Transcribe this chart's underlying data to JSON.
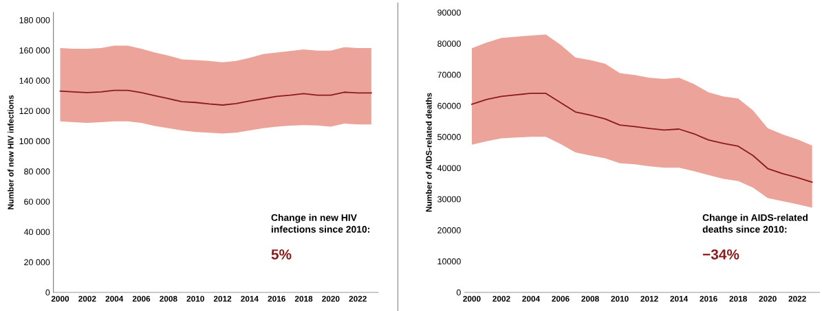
{
  "chart_data": [
    {
      "type": "line",
      "ylabel": "Number of new HIV infections",
      "categories": [
        "2000",
        null,
        "2002",
        null,
        "2004",
        null,
        "2006",
        null,
        "2008",
        null,
        "2010",
        null,
        "2012",
        null,
        "2014",
        null,
        "2016",
        null,
        "2018",
        null,
        "2020",
        null,
        "2022",
        null
      ],
      "series": [
        {
          "color": "#8b1a1a",
          "values": [
            133000,
            132500,
            132000,
            132500,
            133500,
            133500,
            132000,
            130000,
            128000,
            126000,
            125500,
            124500,
            123800,
            124800,
            126500,
            128000,
            129500,
            130300,
            131300,
            130300,
            130300,
            132300,
            131800,
            131800
          ],
          "upper": [
            161500,
            161000,
            161000,
            161500,
            163000,
            163000,
            161000,
            158500,
            156500,
            154000,
            153500,
            153000,
            152000,
            153000,
            155000,
            157500,
            158500,
            159500,
            160500,
            159800,
            159800,
            162000,
            161500,
            161500
          ],
          "lower": [
            113000,
            112500,
            112000,
            112500,
            113000,
            113000,
            112000,
            110000,
            108500,
            107000,
            106000,
            105500,
            105000,
            105500,
            107000,
            108500,
            109500,
            110200,
            110500,
            110300,
            109500,
            111500,
            111000,
            111000
          ]
        }
      ],
      "ylim": [
        0,
        185000
      ],
      "yticks": [
        0,
        {
          "value": 20000,
          "label": "20 000"
        },
        {
          "value": 40000,
          "label": "40 000"
        },
        {
          "value": 60000,
          "label": "60 000"
        },
        {
          "value": 80000,
          "label": "80 000"
        },
        {
          "value": 100000,
          "label": "100 000"
        },
        {
          "value": 120000,
          "label": "120 000"
        },
        {
          "value": 140000,
          "label": "140 000"
        },
        {
          "value": 160000,
          "label": "160 000"
        },
        {
          "value": 180000,
          "label": "180 000"
        }
      ],
      "grid": false,
      "legend": false,
      "annotations": [
        "Change in new HIV\ninfections since 2010:",
        "5%"
      ]
    },
    {
      "type": "line",
      "ylabel": "Number of AIDS-related deaths",
      "categories": [
        "2000",
        null,
        "2002",
        null,
        "2004",
        null,
        "2006",
        null,
        "2008",
        null,
        "2010",
        null,
        "2012",
        null,
        "2014",
        null,
        "2016",
        null,
        "2018",
        null,
        "2020",
        null,
        "2022",
        null
      ],
      "series": [
        {
          "color": "#8b1a1a",
          "values": [
            60500,
            62000,
            63000,
            63500,
            64000,
            64000,
            61000,
            58000,
            57000,
            55800,
            53800,
            53300,
            52700,
            52200,
            52500,
            51000,
            49000,
            47900,
            47000,
            44000,
            39800,
            38200,
            36900,
            35400
          ],
          "upper": [
            78500,
            80300,
            81800,
            82200,
            82600,
            82900,
            79600,
            75500,
            74700,
            73500,
            70500,
            69900,
            69000,
            68600,
            69000,
            67000,
            64300,
            63000,
            62300,
            58500,
            52800,
            50800,
            49200,
            47200
          ],
          "lower": [
            47500,
            48600,
            49500,
            49800,
            50000,
            50000,
            47700,
            45000,
            44000,
            43100,
            41500,
            41200,
            40500,
            40100,
            40100,
            39000,
            37700,
            36500,
            35800,
            33700,
            30300,
            29300,
            28300,
            27200
          ]
        }
      ],
      "ylim": [
        0,
        90000
      ],
      "yticks": [
        0,
        10000,
        20000,
        30000,
        40000,
        50000,
        60000,
        70000,
        80000,
        90000
      ],
      "grid": false,
      "legend": false,
      "annotations": [
        "Change in AIDS-related\ndeaths since 2010:",
        "−34%"
      ]
    }
  ]
}
